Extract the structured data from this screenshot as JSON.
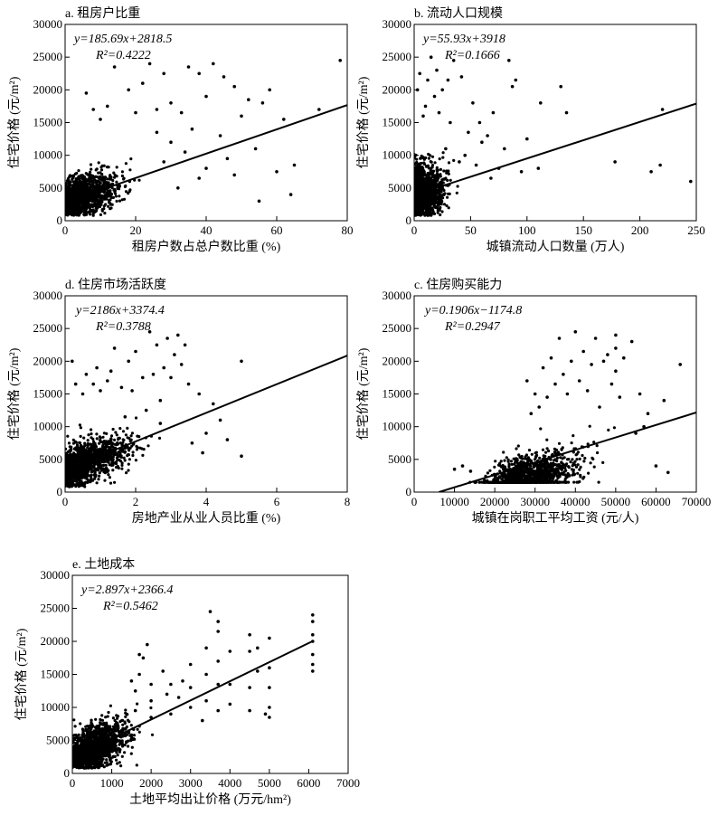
{
  "chart_data": [
    {
      "id": "a",
      "type": "scatter",
      "title": "a. 租房户比重",
      "xlabel": "租房户数占总户数比重 (%)",
      "ylabel": "住宅价格 (元/m²)",
      "xlim": [
        0,
        80
      ],
      "ylim": [
        0,
        30000
      ],
      "xticks": [
        0,
        20,
        40,
        60,
        80
      ],
      "yticks": [
        0,
        5000,
        10000,
        15000,
        20000,
        25000,
        30000
      ],
      "equation": "y=185.69x+2818.5",
      "r2": "R²=0.4222",
      "fit": {
        "slope": 185.69,
        "intercept": 2818.5,
        "x_range": [
          0,
          80
        ]
      },
      "cloud": {
        "n": 1400,
        "x_center": 4,
        "x_spread": 5,
        "x_max": 50,
        "base": 3000,
        "slope_factor": 0.8,
        "noise": 1500
      },
      "points": [
        [
          78,
          24500
        ],
        [
          72,
          17000
        ],
        [
          65,
          8500
        ],
        [
          62,
          15500
        ],
        [
          60,
          7500
        ],
        [
          58,
          20000
        ],
        [
          56,
          18000
        ],
        [
          55,
          3000
        ],
        [
          52,
          18500
        ],
        [
          50,
          16000
        ],
        [
          48,
          20500
        ],
        [
          45,
          22000
        ],
        [
          42,
          24000
        ],
        [
          40,
          19000
        ],
        [
          38,
          22500
        ],
        [
          35,
          23500
        ],
        [
          33,
          16500
        ],
        [
          30,
          18000
        ],
        [
          28,
          22500
        ],
        [
          26,
          17000
        ],
        [
          24,
          24000
        ],
        [
          22,
          21000
        ],
        [
          20,
          16500
        ],
        [
          18,
          20000
        ],
        [
          14,
          23500
        ],
        [
          12,
          17500
        ],
        [
          10,
          15500
        ],
        [
          8,
          17000
        ],
        [
          6,
          19500
        ],
        [
          44,
          13000
        ],
        [
          46,
          9500
        ],
        [
          40,
          8000
        ],
        [
          36,
          14000
        ],
        [
          30,
          12000
        ],
        [
          26,
          13500
        ],
        [
          34,
          10500
        ],
        [
          38,
          6500
        ],
        [
          48,
          7000
        ],
        [
          54,
          11000
        ],
        [
          64,
          4000
        ],
        [
          32,
          5000
        ],
        [
          28,
          9000
        ]
      ]
    },
    {
      "id": "b",
      "type": "scatter",
      "title": "b. 流动人口规模",
      "xlabel": "城镇流动人口数量 (万人)",
      "ylabel": "住宅价格 (元/m²)",
      "xlim": [
        0,
        250
      ],
      "ylim": [
        0,
        30000
      ],
      "xticks": [
        0,
        50,
        100,
        150,
        200,
        250
      ],
      "yticks": [
        0,
        5000,
        10000,
        15000,
        20000,
        25000,
        30000
      ],
      "equation": "y=55.93x+3918",
      "r2": "R²=0.1666",
      "fit": {
        "slope": 55.93,
        "intercept": 3918,
        "x_range": [
          0,
          250
        ]
      },
      "cloud": {
        "n": 1400,
        "x_center": 6,
        "x_spread": 10,
        "x_max": 60,
        "base": 3800,
        "slope_factor": 0.9,
        "noise": 2000
      },
      "points": [
        [
          245,
          6000
        ],
        [
          220,
          17000
        ],
        [
          218,
          8500
        ],
        [
          210,
          7500
        ],
        [
          178,
          9000
        ],
        [
          135,
          16500
        ],
        [
          130,
          20500
        ],
        [
          112,
          18000
        ],
        [
          110,
          8000
        ],
        [
          90,
          21500
        ],
        [
          87,
          20500
        ],
        [
          84,
          24500
        ],
        [
          80,
          11000
        ],
        [
          75,
          8000
        ],
        [
          70,
          16500
        ],
        [
          65,
          13000
        ],
        [
          58,
          15000
        ],
        [
          52,
          18000
        ],
        [
          48,
          13500
        ],
        [
          42,
          22000
        ],
        [
          40,
          9000
        ],
        [
          35,
          24500
        ],
        [
          30,
          21500
        ],
        [
          25,
          20000
        ],
        [
          22,
          16500
        ],
        [
          20,
          23000
        ],
        [
          18,
          19000
        ],
        [
          15,
          25000
        ],
        [
          12,
          21500
        ],
        [
          10,
          17500
        ],
        [
          8,
          16000
        ],
        [
          5,
          22500
        ],
        [
          3,
          20000
        ],
        [
          28,
          11000
        ],
        [
          32,
          15000
        ],
        [
          45,
          10000
        ],
        [
          55,
          8500
        ],
        [
          60,
          12000
        ],
        [
          68,
          6500
        ],
        [
          95,
          7500
        ],
        [
          100,
          12500
        ]
      ]
    },
    {
      "id": "d",
      "type": "scatter",
      "title": "d. 住房市场活跃度",
      "xlabel": "房地产业从业人员比重 (%)",
      "ylabel": "住宅价格 (元/m²)",
      "xlim": [
        0,
        8
      ],
      "ylim": [
        0,
        30000
      ],
      "xticks": [
        0,
        2,
        4,
        6,
        8
      ],
      "yticks": [
        0,
        5000,
        10000,
        15000,
        20000,
        25000,
        30000
      ],
      "equation": "y=2186x+3374.4",
      "r2": "R²=0.3788",
      "fit": {
        "slope": 2186,
        "intercept": 3374.4,
        "x_range": [
          0,
          8
        ]
      },
      "cloud": {
        "n": 1400,
        "x_center": 0.5,
        "x_spread": 0.6,
        "x_max": 4.5,
        "base": 3300,
        "slope_factor": 0.9,
        "noise": 1600
      },
      "points": [
        [
          5.0,
          20000
        ],
        [
          5.0,
          5500
        ],
        [
          4.4,
          11000
        ],
        [
          4.2,
          13500
        ],
        [
          4.0,
          9000
        ],
        [
          3.8,
          15000
        ],
        [
          3.5,
          16500
        ],
        [
          3.4,
          22500
        ],
        [
          3.3,
          19500
        ],
        [
          3.2,
          24000
        ],
        [
          3.1,
          21000
        ],
        [
          3.0,
          17500
        ],
        [
          2.9,
          23500
        ],
        [
          2.8,
          19000
        ],
        [
          2.7,
          14000
        ],
        [
          2.6,
          22500
        ],
        [
          2.5,
          18000
        ],
        [
          2.4,
          24500
        ],
        [
          2.2,
          17500
        ],
        [
          2.0,
          21500
        ],
        [
          1.9,
          15500
        ],
        [
          1.8,
          20000
        ],
        [
          1.6,
          16000
        ],
        [
          1.4,
          22000
        ],
        [
          1.3,
          18500
        ],
        [
          1.2,
          17000
        ],
        [
          1.0,
          15500
        ],
        [
          0.9,
          19000
        ],
        [
          0.8,
          16500
        ],
        [
          0.6,
          18000
        ],
        [
          0.5,
          15000
        ],
        [
          0.3,
          16500
        ],
        [
          0.2,
          20000
        ],
        [
          3.6,
          7500
        ],
        [
          3.9,
          6000
        ],
        [
          2.3,
          12500
        ],
        [
          2.7,
          10500
        ],
        [
          1.7,
          11500
        ],
        [
          4.6,
          8000
        ]
      ]
    },
    {
      "id": "c",
      "type": "scatter",
      "title": "c. 住房购买能力",
      "xlabel": "城镇在岗职工平均工资 (元/人)",
      "ylabel": "住宅价格 (元/m²)",
      "xlim": [
        0,
        70000
      ],
      "ylim": [
        0,
        30000
      ],
      "xticks": [
        0,
        10000,
        20000,
        30000,
        40000,
        50000,
        60000,
        70000
      ],
      "yticks": [
        0,
        5000,
        10000,
        15000,
        20000,
        25000,
        30000
      ],
      "equation": "y=0.1906x−1174.8",
      "r2": "R²=0.2947",
      "fit": {
        "slope": 0.1906,
        "intercept": -1174.8,
        "x_range": [
          6160,
          70000
        ]
      },
      "cloud": {
        "n": 1400,
        "x_center": 27000,
        "x_spread": 7000,
        "x_max": 62000,
        "x_min": 12000,
        "base": -2500,
        "slope_factor": 0.85,
        "noise": 1800
      },
      "points": [
        [
          66000,
          19500
        ],
        [
          63000,
          3000
        ],
        [
          62000,
          14000
        ],
        [
          60000,
          4000
        ],
        [
          58000,
          12000
        ],
        [
          57000,
          10000
        ],
        [
          56000,
          15000
        ],
        [
          55000,
          9000
        ],
        [
          54000,
          23000
        ],
        [
          52000,
          20500
        ],
        [
          51000,
          14500
        ],
        [
          50000,
          24000
        ],
        [
          50000,
          22000
        ],
        [
          50000,
          18500
        ],
        [
          49000,
          16500
        ],
        [
          48000,
          21000
        ],
        [
          47000,
          20000
        ],
        [
          46000,
          13000
        ],
        [
          45000,
          23500
        ],
        [
          44000,
          19500
        ],
        [
          43000,
          15500
        ],
        [
          42000,
          21500
        ],
        [
          41000,
          17000
        ],
        [
          40000,
          24500
        ],
        [
          39000,
          20000
        ],
        [
          38000,
          15000
        ],
        [
          37000,
          18000
        ],
        [
          36000,
          23500
        ],
        [
          35000,
          16500
        ],
        [
          34000,
          20500
        ],
        [
          33000,
          14500
        ],
        [
          32000,
          19000
        ],
        [
          31000,
          13000
        ],
        [
          30000,
          15000
        ],
        [
          29000,
          12000
        ],
        [
          28000,
          17000
        ],
        [
          12000,
          4000
        ],
        [
          10000,
          3500
        ],
        [
          14000,
          3200
        ]
      ]
    },
    {
      "id": "e",
      "type": "scatter",
      "title": "e. 土地成本",
      "xlabel": "土地平均出让价格 (万元/hm²)",
      "ylabel": "住宅价格 (元/m²)",
      "xlim": [
        0,
        7000
      ],
      "ylim": [
        0,
        30000
      ],
      "xticks": [
        0,
        1000,
        2000,
        3000,
        4000,
        5000,
        6000,
        7000
      ],
      "yticks": [
        0,
        5000,
        10000,
        15000,
        20000,
        25000,
        30000
      ],
      "equation": "y=2.897x+2366.4",
      "r2": "R²=0.5462",
      "fit": {
        "slope": 2.897,
        "intercept": 2366.4,
        "x_range": [
          0,
          6100
        ]
      },
      "cloud": {
        "n": 1400,
        "x_center": 500,
        "x_spread": 450,
        "x_max": 2100,
        "base": 2500,
        "slope_factor": 0.85,
        "noise": 1600
      },
      "points": [
        [
          6100,
          24000
        ],
        [
          6100,
          23000
        ],
        [
          6100,
          21000
        ],
        [
          6100,
          20000
        ],
        [
          6100,
          18000
        ],
        [
          6100,
          16500
        ],
        [
          6100,
          15500
        ],
        [
          5000,
          20500
        ],
        [
          5000,
          16000
        ],
        [
          5000,
          13000
        ],
        [
          5000,
          10000
        ],
        [
          5000,
          8500
        ],
        [
          4900,
          9000
        ],
        [
          4700,
          19000
        ],
        [
          4700,
          15500
        ],
        [
          4500,
          21000
        ],
        [
          4500,
          18500
        ],
        [
          4500,
          13000
        ],
        [
          4500,
          9500
        ],
        [
          4000,
          18500
        ],
        [
          4000,
          13500
        ],
        [
          4000,
          10500
        ],
        [
          3700,
          23000
        ],
        [
          3700,
          21500
        ],
        [
          3700,
          17000
        ],
        [
          3700,
          13500
        ],
        [
          3700,
          9500
        ],
        [
          3500,
          24500
        ],
        [
          3400,
          19000
        ],
        [
          3400,
          15000
        ],
        [
          3400,
          11000
        ],
        [
          3300,
          8000
        ],
        [
          3000,
          16500
        ],
        [
          3000,
          13000
        ],
        [
          3000,
          10000
        ],
        [
          2800,
          14000
        ],
        [
          2700,
          11500
        ],
        [
          2500,
          13500
        ],
        [
          2500,
          9000
        ],
        [
          2400,
          12000
        ],
        [
          2300,
          15500
        ],
        [
          2000,
          13500
        ],
        [
          2000,
          11000
        ],
        [
          2000,
          8500
        ],
        [
          1900,
          19500
        ],
        [
          1800,
          17500
        ],
        [
          1700,
          18000
        ],
        [
          1700,
          15000
        ],
        [
          1600,
          12500
        ],
        [
          1600,
          9500
        ],
        [
          1500,
          14000
        ]
      ]
    }
  ]
}
